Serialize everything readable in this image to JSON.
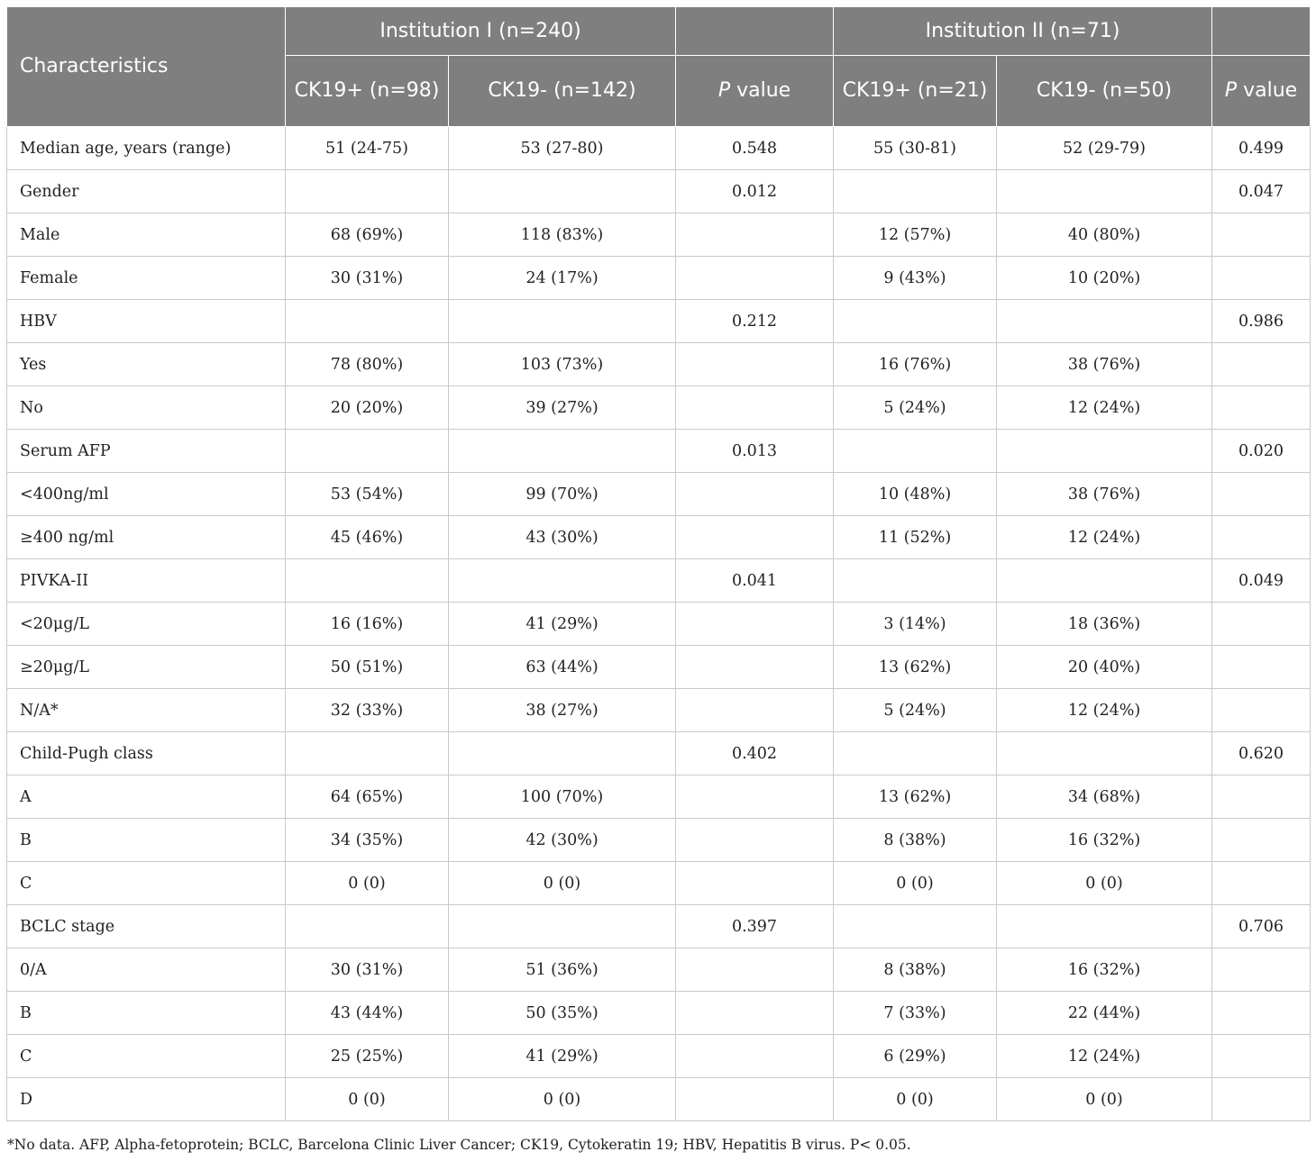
{
  "header": {
    "characteristics": "Characteristics",
    "institution_1": "Institution I (n=240)",
    "institution_2": "Institution II (n=71)",
    "cols_1": [
      "CK19+ (n=98)",
      "CK19- (n=142)"
    ],
    "cols_2": [
      "CK19+ (n=21)",
      "CK19- (n=50)"
    ],
    "p_italic": "P",
    "p_rest": " value"
  },
  "rows": [
    [
      "Median age, years (range)",
      "51 (24-75)",
      "53 (27-80)",
      "0.548",
      "55 (30-81)",
      "52 (29-79)",
      "0.499"
    ],
    [
      "Gender",
      "",
      "",
      "0.012",
      "",
      "",
      "0.047"
    ],
    [
      "Male",
      "68 (69%)",
      "118 (83%)",
      "",
      "12 (57%)",
      "40 (80%)",
      ""
    ],
    [
      "Female",
      "30 (31%)",
      "24 (17%)",
      "",
      "9 (43%)",
      "10 (20%)",
      ""
    ],
    [
      "HBV",
      "",
      "",
      "0.212",
      "",
      "",
      "0.986"
    ],
    [
      "Yes",
      "78 (80%)",
      "103 (73%)",
      "",
      "16 (76%)",
      "38 (76%)",
      ""
    ],
    [
      "No",
      "20 (20%)",
      "39 (27%)",
      "",
      "5 (24%)",
      "12 (24%)",
      ""
    ],
    [
      "Serum AFP",
      "",
      "",
      "0.013",
      "",
      "",
      "0.020"
    ],
    [
      "<400ng/ml",
      "53 (54%)",
      "99 (70%)",
      "",
      "10 (48%)",
      "38 (76%)",
      ""
    ],
    [
      "≥400 ng/ml",
      "45 (46%)",
      "43 (30%)",
      "",
      "11 (52%)",
      "12 (24%)",
      ""
    ],
    [
      "PIVKA-II",
      "",
      "",
      "0.041",
      "",
      "",
      "0.049"
    ],
    [
      "<20μg/L",
      "16 (16%)",
      "41 (29%)",
      "",
      "3 (14%)",
      "18 (36%)",
      ""
    ],
    [
      "≥20μg/L",
      "50 (51%)",
      "63 (44%)",
      "",
      "13 (62%)",
      "20 (40%)",
      ""
    ],
    [
      "N/A*",
      "32 (33%)",
      "38 (27%)",
      "",
      "5 (24%)",
      "12 (24%)",
      ""
    ],
    [
      "Child-Pugh class",
      "",
      "",
      "0.402",
      "",
      "",
      "0.620"
    ],
    [
      "A",
      "64 (65%)",
      "100 (70%)",
      "",
      "13 (62%)",
      "34 (68%)",
      ""
    ],
    [
      "B",
      "34 (35%)",
      "42 (30%)",
      "",
      "8 (38%)",
      "16 (32%)",
      ""
    ],
    [
      "C",
      "0 (0)",
      "0 (0)",
      "",
      "0 (0)",
      "0 (0)",
      ""
    ],
    [
      "BCLC stage",
      "",
      "",
      "0.397",
      "",
      "",
      "0.706"
    ],
    [
      "0/A",
      "30 (31%)",
      "51 (36%)",
      "",
      "8 (38%)",
      "16 (32%)",
      ""
    ],
    [
      "B",
      "43 (44%)",
      "50 (35%)",
      "",
      "7 (33%)",
      "22 (44%)",
      ""
    ],
    [
      "C",
      "25 (25%)",
      "41 (29%)",
      "",
      "6 (29%)",
      "12 (24%)",
      ""
    ],
    [
      "D",
      "0 (0)",
      "0 (0)",
      "",
      "0 (0)",
      "0 (0)",
      ""
    ]
  ],
  "footnote": "*No data. AFP, Alpha-fetoprotein; BCLC, Barcelona Clinic Liver Cancer; CK19, Cytokeratin 19; HBV, Hepatitis B virus. P< 0.05."
}
